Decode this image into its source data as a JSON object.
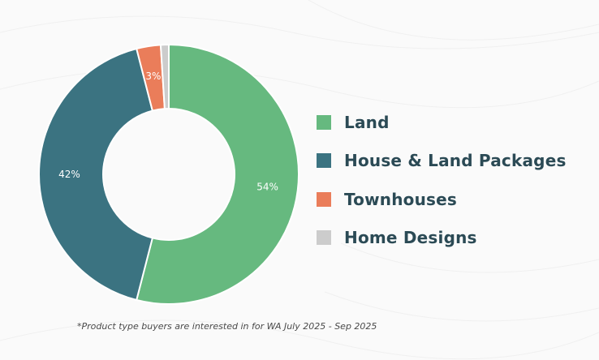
{
  "chart_data": {
    "type": "pie",
    "variant": "donut",
    "categories": [
      "Land",
      "House & Land Packages",
      "Townhouses",
      "Home Designs"
    ],
    "values": [
      54,
      42,
      3,
      1
    ],
    "data_labels": [
      "54%",
      "42%",
      "3%",
      ""
    ],
    "colors": [
      "#66b97f",
      "#3b7381",
      "#ea7d5a",
      "#cccccc"
    ],
    "legend_position": "right",
    "footnote": "*Product type buyers are interested in for WA July 2025 - Sep 2025"
  },
  "legend": {
    "items": [
      {
        "label": "Land",
        "color": "#66b97f"
      },
      {
        "label": "House & Land Packages",
        "color": "#3b7381"
      },
      {
        "label": "Townhouses",
        "color": "#ea7d5a"
      },
      {
        "label": "Home Designs",
        "color": "#cccccc"
      }
    ]
  },
  "footnote": "*Product type buyers are interested in for WA July 2025 - Sep 2025"
}
